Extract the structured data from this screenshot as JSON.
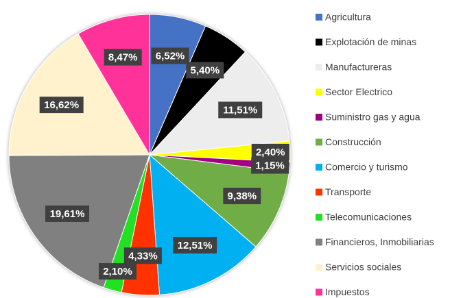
{
  "chart_data": {
    "type": "pie",
    "categories": [
      "Agricultura",
      "Explotación de minas",
      "Manufactureras",
      "Sector Electrico",
      "Suministro gas y agua",
      "Construcción",
      "Comercio y turismo",
      "Transporte",
      "Telecomunicaciones",
      "Financieros, Inmobiliarias",
      "Servicios sociales",
      "Impuestos"
    ],
    "values": [
      6.52,
      5.4,
      11.51,
      2.4,
      1.15,
      9.38,
      12.51,
      4.33,
      2.1,
      19.61,
      16.62,
      8.47
    ],
    "value_labels": [
      "6,52%",
      "5,40%",
      "11,51%",
      "2,40%",
      "1,15%",
      "9,38%",
      "12,51%",
      "4,33%",
      "2,10%",
      "19,61%",
      "16,62%",
      "8,47%"
    ],
    "colors": [
      "#4472c4",
      "#000000",
      "#ededed",
      "#ffff00",
      "#a0007f",
      "#70ad47",
      "#00b0f0",
      "#ff3300",
      "#22e022",
      "#808080",
      "#fff2cc",
      "#ff3399"
    ],
    "legend": "right"
  }
}
